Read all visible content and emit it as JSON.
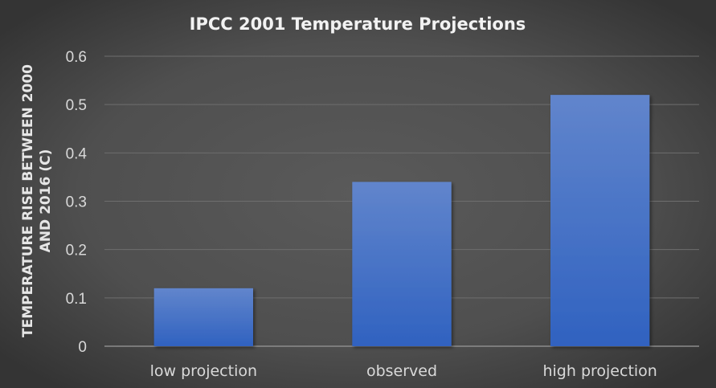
{
  "chart_data": {
    "type": "bar",
    "title": "IPCC 2001 Temperature Projections",
    "categories": [
      "low projection",
      "observed",
      "high projection"
    ],
    "values": [
      0.12,
      0.34,
      0.52
    ],
    "xlabel": "",
    "ylabel_lines": [
      "TEMPERATURE RISE BETWEEN 2000",
      "AND 2016 (C)"
    ],
    "ylim": [
      0,
      0.6
    ],
    "yticks": [
      "0",
      "0.1",
      "0.2",
      "0.3",
      "0.4",
      "0.5",
      "0.6"
    ],
    "grid": true,
    "legend": "none",
    "colors": {
      "bar_top": "#6185cc",
      "bar_bottom": "#3062c0",
      "grid": "#6e6e6e",
      "axis": "#8c8c8c"
    }
  }
}
